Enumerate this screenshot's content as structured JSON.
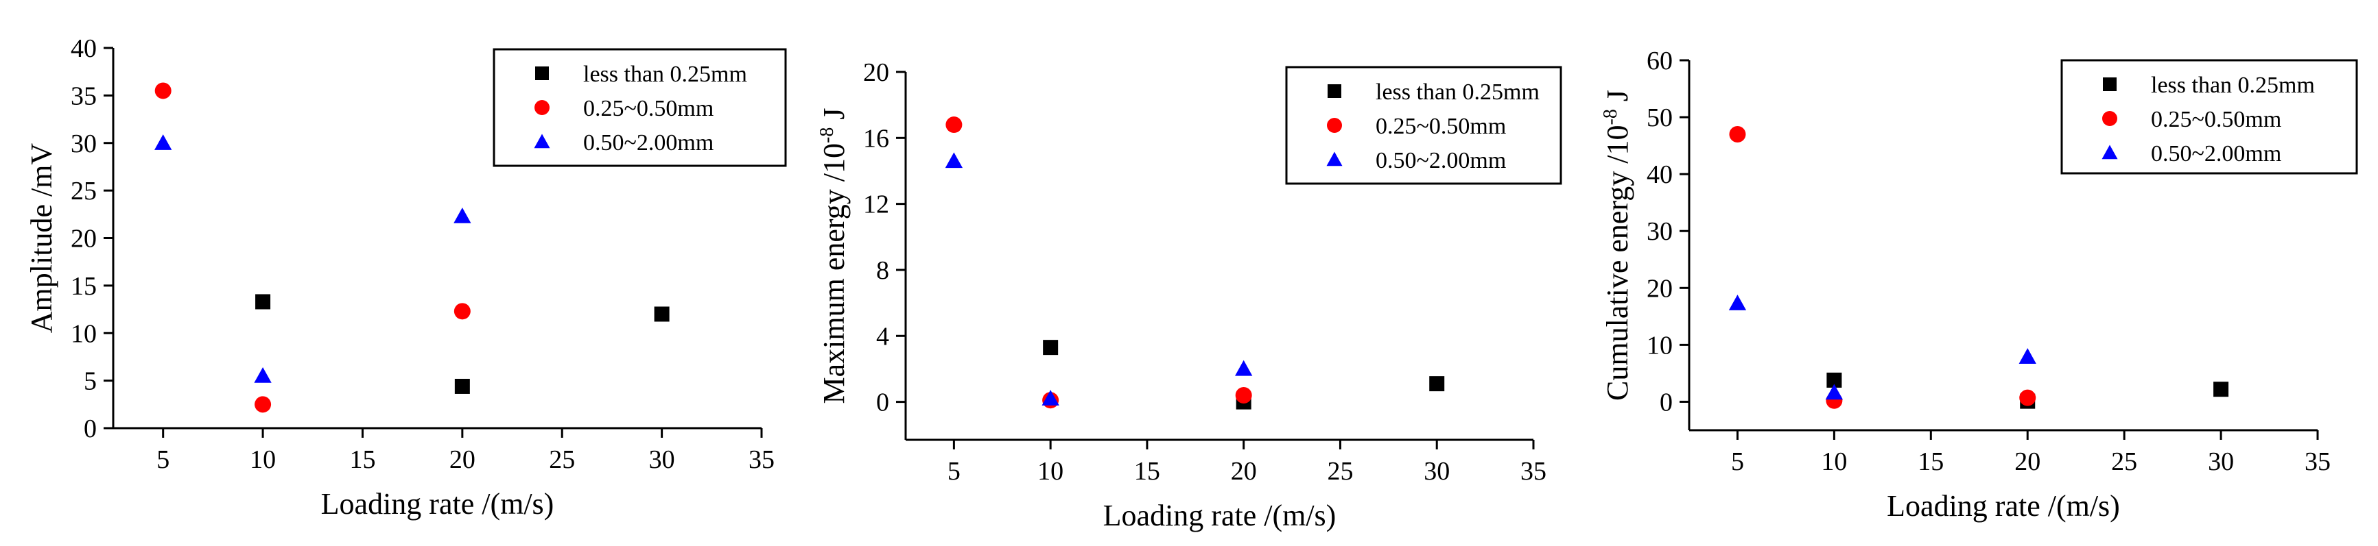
{
  "chart_data": [
    {
      "type": "scatter",
      "xlabel": "Loading rate /(m/s)",
      "ylabel": {
        "text": "Amplitude /mV",
        "sup": "",
        "tail": ""
      },
      "xlim": [
        2.5,
        35
      ],
      "ylim": [
        0,
        40
      ],
      "xticks": [
        5,
        10,
        15,
        20,
        25,
        30,
        35
      ],
      "yticks": [
        0,
        5,
        10,
        15,
        20,
        25,
        30,
        35,
        40
      ],
      "legend_position": "top-right",
      "series": [
        {
          "name": "less than 0.25mm",
          "marker": "square",
          "color": "#000000",
          "points": [
            {
              "x": 10,
              "y": 13.3
            },
            {
              "x": 20,
              "y": 4.4
            },
            {
              "x": 30,
              "y": 12
            }
          ]
        },
        {
          "name": "0.25~0.50mm",
          "marker": "circle",
          "color": "#ff0000",
          "points": [
            {
              "x": 5,
              "y": 35.5
            },
            {
              "x": 10,
              "y": 2.5
            },
            {
              "x": 20,
              "y": 12.3
            }
          ]
        },
        {
          "name": "0.50~2.00mm",
          "marker": "triangle",
          "color": "#0000ff",
          "points": [
            {
              "x": 5,
              "y": 30
            },
            {
              "x": 10,
              "y": 5.5
            },
            {
              "x": 20,
              "y": 22.3
            }
          ]
        }
      ]
    },
    {
      "type": "scatter",
      "xlabel": "Loading rate /(m/s)",
      "ylabel": {
        "text": "Maximum energy /10",
        "sup": "-8",
        "tail": " J"
      },
      "xlim": [
        2.5,
        35
      ],
      "ylim": [
        -2.3,
        20
      ],
      "xticks": [
        5,
        10,
        15,
        20,
        25,
        30,
        35
      ],
      "yticks": [
        0,
        4,
        8,
        12,
        16,
        20
      ],
      "legend_position": "top-right",
      "series": [
        {
          "name": "less than 0.25mm",
          "marker": "square",
          "color": "#000000",
          "points": [
            {
              "x": 10,
              "y": 3.3
            },
            {
              "x": 20,
              "y": 0
            },
            {
              "x": 30,
              "y": 1.1
            }
          ]
        },
        {
          "name": "0.25~0.50mm",
          "marker": "circle",
          "color": "#ff0000",
          "points": [
            {
              "x": 5,
              "y": 16.8
            },
            {
              "x": 10,
              "y": 0.1
            },
            {
              "x": 20,
              "y": 0.4
            }
          ]
        },
        {
          "name": "0.50~2.00mm",
          "marker": "triangle",
          "color": "#0000ff",
          "points": [
            {
              "x": 5,
              "y": 14.6
            },
            {
              "x": 10,
              "y": 0.2
            },
            {
              "x": 20,
              "y": 2.0
            }
          ]
        }
      ]
    },
    {
      "type": "scatter",
      "xlabel": "Loading rate /(m/s)",
      "ylabel": {
        "text": "Cumulative energy /10",
        "sup": "-8",
        "tail": " J"
      },
      "xlim": [
        2.5,
        35
      ],
      "ylim": [
        -5,
        60
      ],
      "xticks": [
        5,
        10,
        15,
        20,
        25,
        30,
        35
      ],
      "yticks": [
        0,
        10,
        20,
        30,
        40,
        50,
        60
      ],
      "legend_position": "top-right",
      "series": [
        {
          "name": "less than 0.25mm",
          "marker": "square",
          "color": "#000000",
          "points": [
            {
              "x": 10,
              "y": 3.8
            },
            {
              "x": 20,
              "y": 0.1
            },
            {
              "x": 30,
              "y": 2.2
            }
          ]
        },
        {
          "name": "0.25~0.50mm",
          "marker": "circle",
          "color": "#ff0000",
          "points": [
            {
              "x": 5,
              "y": 47
            },
            {
              "x": 10,
              "y": 0.2
            },
            {
              "x": 20,
              "y": 0.7
            }
          ]
        },
        {
          "name": "0.50~2.00mm",
          "marker": "triangle",
          "color": "#0000ff",
          "points": [
            {
              "x": 5,
              "y": 17.3
            },
            {
              "x": 10,
              "y": 1.6
            },
            {
              "x": 20,
              "y": 7.9
            }
          ]
        }
      ]
    }
  ]
}
